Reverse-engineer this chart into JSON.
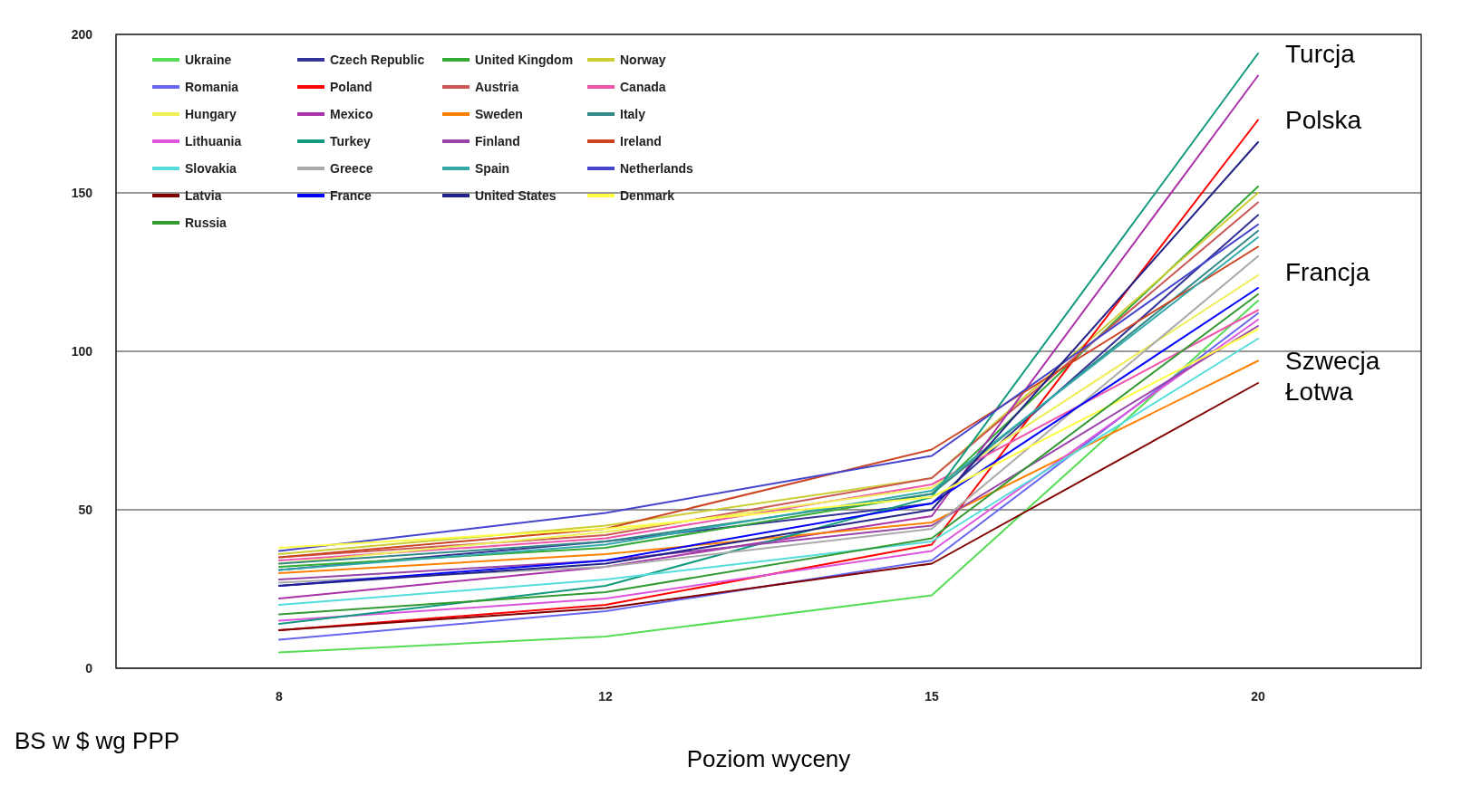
{
  "chart_data": {
    "type": "line",
    "xlabel": "Poziom wyceny",
    "ylabel": "BS w $ wg PPP",
    "categories": [
      "8",
      "12",
      "15",
      "20"
    ],
    "ylim": [
      0,
      200
    ],
    "yticks": [
      0,
      50,
      100,
      150,
      200
    ],
    "grid": "y",
    "legend": "top left",
    "marker": "none",
    "series": [
      {
        "name": "Ukraine",
        "color": "#55dd55",
        "values": [
          5,
          10,
          23,
          116
        ]
      },
      {
        "name": "Czech Republic",
        "color": "#333399",
        "values": [
          31,
          40,
          52,
          143
        ]
      },
      {
        "name": "United Kingdom",
        "color": "#33aa33",
        "values": [
          32,
          38,
          55,
          152
        ]
      },
      {
        "name": "Norway",
        "color": "#cccc33",
        "values": [
          36,
          45,
          60,
          150
        ]
      },
      {
        "name": "Romania",
        "color": "#6666ee",
        "values": [
          9,
          18,
          34,
          112
        ]
      },
      {
        "name": "Poland",
        "color": "#ff0000",
        "values": [
          12,
          20,
          39,
          173
        ]
      },
      {
        "name": "Austria",
        "color": "#cc5555",
        "values": [
          35,
          42,
          60,
          147
        ]
      },
      {
        "name": "Canada",
        "color": "#ee55aa",
        "values": [
          34,
          41,
          58,
          113
        ]
      },
      {
        "name": "Hungary",
        "color": "#eeee55",
        "values": [
          33,
          43,
          57,
          124
        ]
      },
      {
        "name": "Mexico",
        "color": "#aa33aa",
        "values": [
          22,
          32,
          48,
          187
        ]
      },
      {
        "name": "Sweden",
        "color": "#ff8000",
        "values": [
          30,
          36,
          46,
          97
        ]
      },
      {
        "name": "Italy",
        "color": "#338888",
        "values": [
          33,
          40,
          55,
          138
        ]
      },
      {
        "name": "Lithuania",
        "color": "#dd55dd",
        "values": [
          15,
          22,
          37,
          110
        ]
      },
      {
        "name": "Turkey",
        "color": "#129a7e",
        "values": [
          14,
          26,
          54,
          194
        ]
      },
      {
        "name": "Finland",
        "color": "#9944aa",
        "values": [
          28,
          34,
          45,
          108
        ]
      },
      {
        "name": "Ireland",
        "color": "#cc4422",
        "values": [
          35,
          44,
          69,
          133
        ]
      },
      {
        "name": "Slovakia",
        "color": "#55dddd",
        "values": [
          20,
          28,
          40,
          104
        ]
      },
      {
        "name": "Greece",
        "color": "#aaaaaa",
        "values": [
          27,
          32,
          44,
          130
        ]
      },
      {
        "name": "Spain",
        "color": "#33aaaa",
        "values": [
          31,
          39,
          56,
          136
        ]
      },
      {
        "name": "Netherlands",
        "color": "#4444cc",
        "values": [
          37,
          49,
          67,
          140
        ]
      },
      {
        "name": "Latvia",
        "color": "#800000",
        "values": [
          12,
          19,
          33,
          90
        ]
      },
      {
        "name": "France",
        "color": "#0000ff",
        "values": [
          26,
          34,
          52,
          120
        ]
      },
      {
        "name": "United States",
        "color": "#222288",
        "values": [
          26,
          33,
          50,
          166
        ]
      },
      {
        "name": "Denmark",
        "color": "#ffff44",
        "values": [
          38,
          44,
          54,
          107
        ]
      },
      {
        "name": "Russia",
        "color": "#339933",
        "values": [
          17,
          24,
          41,
          118
        ]
      }
    ],
    "annotations": [
      {
        "text": "Turcja",
        "x": "20",
        "y": 194
      },
      {
        "text": "Polska",
        "x": "20",
        "y": 173
      },
      {
        "text": "Francja",
        "x": "20",
        "y": 125
      },
      {
        "text": "Szwecja",
        "x": "20",
        "y": 97
      },
      {
        "text": "Łotwa",
        "x": "20",
        "y": 90
      }
    ]
  }
}
